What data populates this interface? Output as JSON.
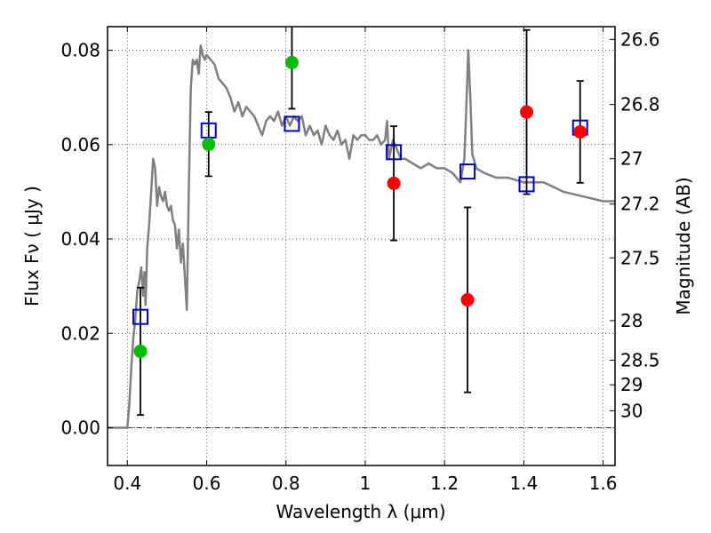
{
  "chart_data": {
    "type": "scatter",
    "xlabel": "Wavelength  λ (μm)",
    "ylabel": "Flux  Fν  ( μJy )",
    "ylabel_right": "Magnitude (AB)",
    "xlim": [
      0.35,
      1.63
    ],
    "ylim": [
      -0.008,
      0.085
    ],
    "grid": true,
    "x_ticks": [
      0.4,
      0.6,
      0.8,
      1.0,
      1.2,
      1.4,
      1.6
    ],
    "x_tick_labels": [
      "0.4",
      "0.6",
      "0.8",
      "1",
      "1.2",
      "1.4",
      "1.6"
    ],
    "y_ticks": [
      0.0,
      0.02,
      0.04,
      0.06,
      0.08
    ],
    "y_tick_labels": [
      "0.00",
      "0.02",
      "0.04",
      "0.06",
      "0.08"
    ],
    "mag_ticks": [
      {
        "label": "26.6",
        "flux": 0.0823
      },
      {
        "label": "26.8",
        "flux": 0.0685
      },
      {
        "label": "27",
        "flux": 0.057
      },
      {
        "label": "27.2",
        "flux": 0.0474
      },
      {
        "label": "27.5",
        "flux": 0.036
      },
      {
        "label": "28",
        "flux": 0.0227
      },
      {
        "label": "28.5",
        "flux": 0.0143
      },
      {
        "label": "29",
        "flux": 0.0091
      },
      {
        "label": "30",
        "flux": 0.0036
      }
    ],
    "series": [
      {
        "type": "line",
        "color": "#808080",
        "x": [
          0.35,
          0.4,
          0.405,
          0.41,
          0.415,
          0.42,
          0.425,
          0.43,
          0.435,
          0.44,
          0.443,
          0.446,
          0.45,
          0.455,
          0.46,
          0.465,
          0.47,
          0.475,
          0.48,
          0.485,
          0.49,
          0.495,
          0.5,
          0.505,
          0.51,
          0.515,
          0.52,
          0.525,
          0.53,
          0.535,
          0.54,
          0.545,
          0.55,
          0.555,
          0.56,
          0.565,
          0.57,
          0.575,
          0.58,
          0.585,
          0.59,
          0.595,
          0.6,
          0.61,
          0.62,
          0.63,
          0.64,
          0.65,
          0.66,
          0.67,
          0.68,
          0.69,
          0.7,
          0.71,
          0.72,
          0.73,
          0.74,
          0.75,
          0.76,
          0.77,
          0.78,
          0.79,
          0.8,
          0.81,
          0.82,
          0.83,
          0.84,
          0.85,
          0.86,
          0.87,
          0.88,
          0.89,
          0.9,
          0.91,
          0.92,
          0.93,
          0.94,
          0.95,
          0.96,
          0.97,
          0.98,
          0.99,
          1.0,
          1.01,
          1.02,
          1.03,
          1.04,
          1.05,
          1.055,
          1.06,
          1.07,
          1.08,
          1.09,
          1.1,
          1.12,
          1.14,
          1.16,
          1.18,
          1.2,
          1.22,
          1.24,
          1.25,
          1.255,
          1.26,
          1.265,
          1.27,
          1.28,
          1.3,
          1.33,
          1.36,
          1.4,
          1.45,
          1.5,
          1.55,
          1.6,
          1.63
        ],
        "y": [
          0.0,
          0.0,
          0.005,
          0.013,
          0.019,
          0.023,
          0.029,
          0.031,
          0.034,
          0.028,
          0.033,
          0.026,
          0.038,
          0.043,
          0.05,
          0.057,
          0.055,
          0.047,
          0.051,
          0.049,
          0.048,
          0.05,
          0.047,
          0.046,
          0.047,
          0.044,
          0.043,
          0.038,
          0.042,
          0.035,
          0.039,
          0.032,
          0.025,
          0.05,
          0.072,
          0.078,
          0.077,
          0.078,
          0.075,
          0.081,
          0.079,
          0.078,
          0.079,
          0.078,
          0.077,
          0.074,
          0.073,
          0.072,
          0.07,
          0.067,
          0.069,
          0.066,
          0.068,
          0.067,
          0.066,
          0.064,
          0.062,
          0.065,
          0.066,
          0.065,
          0.067,
          0.064,
          0.066,
          0.064,
          0.066,
          0.065,
          0.066,
          0.062,
          0.064,
          0.062,
          0.063,
          0.06,
          0.064,
          0.062,
          0.061,
          0.063,
          0.06,
          0.061,
          0.057,
          0.062,
          0.061,
          0.062,
          0.062,
          0.061,
          0.061,
          0.062,
          0.06,
          0.061,
          0.065,
          0.057,
          0.061,
          0.059,
          0.057,
          0.057,
          0.056,
          0.055,
          0.056,
          0.055,
          0.055,
          0.054,
          0.052,
          0.057,
          0.068,
          0.08,
          0.07,
          0.058,
          0.055,
          0.054,
          0.053,
          0.053,
          0.052,
          0.052,
          0.05,
          0.049,
          0.048,
          0.048
        ]
      },
      {
        "type": "open-square",
        "color": "#0000cc",
        "x": [
          0.433,
          0.605,
          0.815,
          1.072,
          1.258,
          1.407,
          1.542
        ],
        "y": [
          0.0235,
          0.063,
          0.0644,
          0.0584,
          0.0543,
          0.0516,
          0.0636
        ]
      },
      {
        "type": "filled-circle",
        "color": "#00bf00",
        "x": [
          0.433,
          0.605,
          0.815
        ],
        "y": [
          0.0162,
          0.0601,
          0.0774
        ],
        "yerr": [
          0.0135,
          0.0068,
          0.0098
        ]
      },
      {
        "type": "filled-circle",
        "color": "#ff0000",
        "x": [
          1.072,
          1.258,
          1.407,
          1.542
        ],
        "y": [
          0.0518,
          0.0271,
          0.0669,
          0.0627
        ],
        "yerr": [
          0.0121,
          0.0196,
          0.0174,
          0.0108
        ]
      }
    ]
  }
}
